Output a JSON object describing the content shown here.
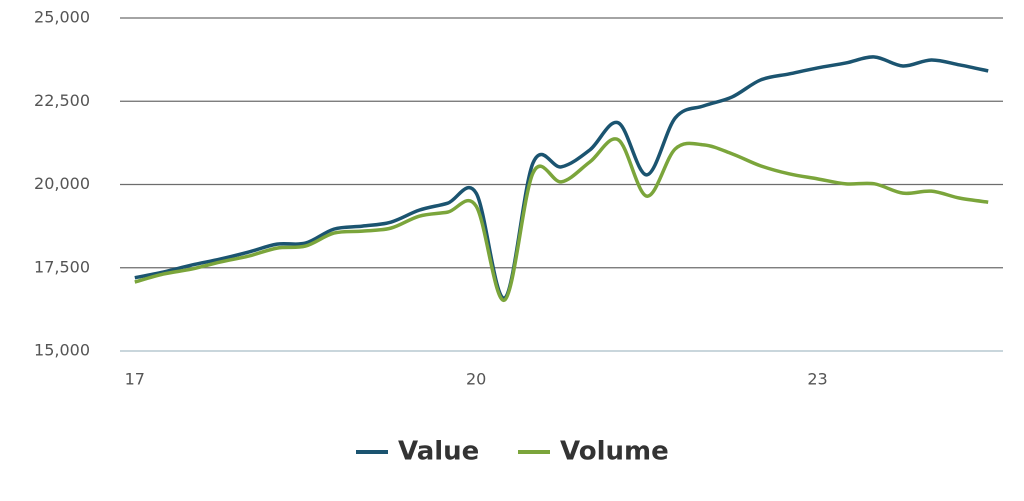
{
  "chart_data": {
    "type": "line",
    "x": [
      17,
      17.25,
      17.5,
      17.75,
      18,
      18.25,
      18.5,
      18.75,
      19,
      19.25,
      19.5,
      19.75,
      20,
      20.25,
      20.5,
      20.75,
      21,
      21.25,
      21.5,
      21.75,
      22,
      22.25,
      22.5,
      22.75,
      23,
      23.25,
      23.5,
      23.75,
      24,
      24.25,
      24.5
    ],
    "series": [
      {
        "name": "Value",
        "color": "#1b5470",
        "values": [
          17200,
          17370,
          17580,
          17760,
          17970,
          18210,
          18240,
          18660,
          18750,
          18870,
          19230,
          19440,
          19740,
          16590,
          20650,
          20530,
          21040,
          21850,
          20290,
          22000,
          22360,
          22630,
          23140,
          23320,
          23500,
          23650,
          23830,
          23560,
          23740,
          23590,
          23410
        ]
      },
      {
        "name": "Volume",
        "color": "#7ba53b",
        "values": [
          17070,
          17310,
          17460,
          17670,
          17850,
          18090,
          18150,
          18540,
          18600,
          18690,
          19050,
          19170,
          19350,
          16530,
          20350,
          20080,
          20680,
          21340,
          19650,
          21070,
          21190,
          20920,
          20560,
          20320,
          20170,
          20020,
          20020,
          19740,
          19800,
          19590,
          19470
        ]
      }
    ],
    "xlim": [
      16.87,
      24.63
    ],
    "xticks": [
      17,
      20,
      23
    ],
    "ylim": [
      15000,
      25000
    ],
    "yticks": [
      {
        "value": 15000,
        "label": "15,000"
      },
      {
        "value": 17500,
        "label": "17,500"
      },
      {
        "value": 20000,
        "label": "20,000"
      },
      {
        "value": 22500,
        "label": "22,500"
      },
      {
        "value": 25000,
        "label": "25,000"
      }
    ],
    "grid": true,
    "legend": "bottom"
  }
}
